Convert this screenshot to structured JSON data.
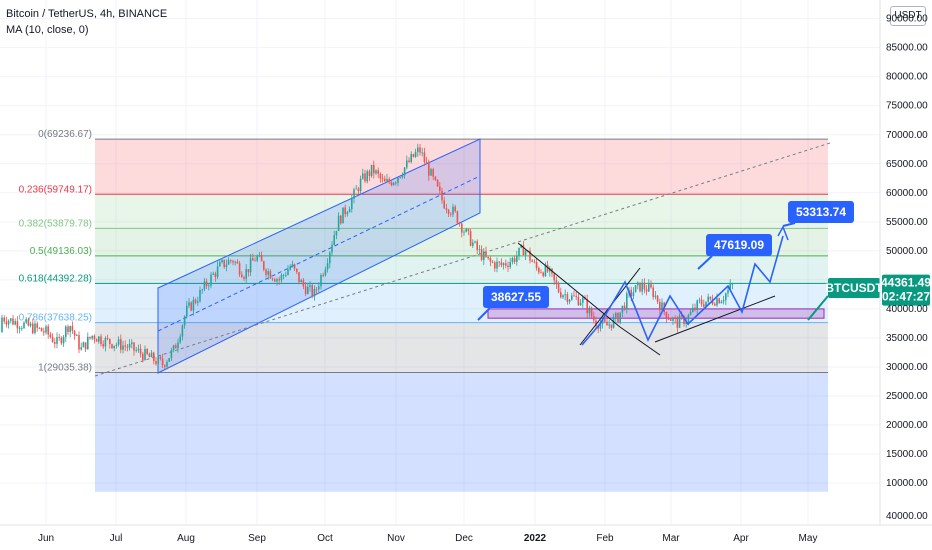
{
  "legend": {
    "title": "Bitcoin / TetherUS, 4h, BINANCE",
    "indicator": "MA (10, close, 0)"
  },
  "unit": "USDT",
  "chart_data": {
    "type": "candlestick",
    "symbol": "BTCUSDT",
    "timeframe": "4h",
    "exchange": "BINANCE",
    "x_ticks": [
      "Jun",
      "Jul",
      "Aug",
      "Sep",
      "Oct",
      "Nov",
      "Dec",
      "2022",
      "Feb",
      "Mar",
      "Apr",
      "May"
    ],
    "y_ticks": [
      90000,
      85000,
      80000,
      75000,
      70000,
      65000,
      60000,
      55000,
      50000,
      45000,
      40000,
      35000,
      30000,
      25000,
      20000,
      15000,
      10000
    ],
    "y_tick_labels": [
      "90000.00",
      "85000.00",
      "80000.00",
      "75000.00",
      "70000.00",
      "65000.00",
      "60000.00",
      "55000.00",
      "50000.00",
      "45000.00",
      "40000.00",
      "35000.00",
      "30000.00",
      "25000.00",
      "20000.00",
      "15000.00",
      "10000.00"
    ],
    "ylim": [
      7000,
      93000
    ],
    "bottom_label": "40000.00",
    "price_series_months": [
      {
        "m": "Jun",
        "v": [
          36000,
          34000,
          37500,
          33000,
          35500,
          34500
        ]
      },
      {
        "m": "Jul",
        "v": [
          34000,
          33500,
          32500,
          31500,
          30500,
          33000
        ]
      },
      {
        "m": "Aug",
        "v": [
          39500,
          42000,
          45000,
          47500,
          48500,
          46000
        ]
      },
      {
        "m": "Sep",
        "v": [
          49000,
          46500,
          45000,
          47500,
          44000,
          42500
        ]
      },
      {
        "m": "Oct",
        "v": [
          48000,
          55000,
          58000,
          62000,
          64000,
          61500
        ]
      },
      {
        "m": "Nov",
        "v": [
          62500,
          65000,
          67500,
          63000,
          58500,
          56500
        ]
      },
      {
        "m": "Dec",
        "v": [
          53000,
          50000,
          48000,
          47500,
          48500,
          50500
        ]
      },
      {
        "m": "2022",
        "v": [
          47000,
          46500,
          43000,
          42000,
          41500,
          38000
        ]
      },
      {
        "m": "Feb",
        "v": [
          37000,
          38500,
          42500,
          44000,
          43000,
          39500
        ]
      },
      {
        "m": "Mar",
        "v": [
          37500,
          38500,
          41000,
          41500,
          42000,
          44361.49
        ]
      }
    ],
    "fib_levels": [
      {
        "ratio": "0",
        "price": 69236.67,
        "label": "0(69236.67)",
        "color": "#787b86"
      },
      {
        "ratio": "0.236",
        "price": 59749.17,
        "label": "0.236(59749.17)",
        "color": "#f23645"
      },
      {
        "ratio": "0.382",
        "price": 53879.78,
        "label": "0.382(53879.78)",
        "color": "#81c784"
      },
      {
        "ratio": "0.5",
        "price": 49136.03,
        "label": "0.5(49136.03)",
        "color": "#4caf50"
      },
      {
        "ratio": "0.618",
        "price": 44392.28,
        "label": "0.618(44392.28)",
        "color": "#089981"
      },
      {
        "ratio": "0.786",
        "price": 37638.25,
        "label": "0.786(37638.25)",
        "color": "#64b5f6"
      },
      {
        "ratio": "1",
        "price": 29035.38,
        "label": "1(29035.38)",
        "color": "#787b86"
      }
    ],
    "fib_ext_bottom": 8500,
    "targets": [
      {
        "label": "38627.55",
        "price": 38627.55
      },
      {
        "label": "47619.09",
        "price": 47619.09
      },
      {
        "label": "53313.74",
        "price": 53313.74
      }
    ],
    "current": {
      "symbol": "BTCUSDT",
      "price": "44361.49",
      "countdown": "02:47:27",
      "value": 44361.49
    },
    "support_zone": [
      38400,
      40000
    ],
    "grid": true,
    "colors": {
      "up": "#26a69a",
      "down": "#ef5350",
      "callout": "#2962ff",
      "projection": "#2962ff",
      "channel_fill": "#2962ff",
      "zone": "#9c27b0"
    }
  }
}
